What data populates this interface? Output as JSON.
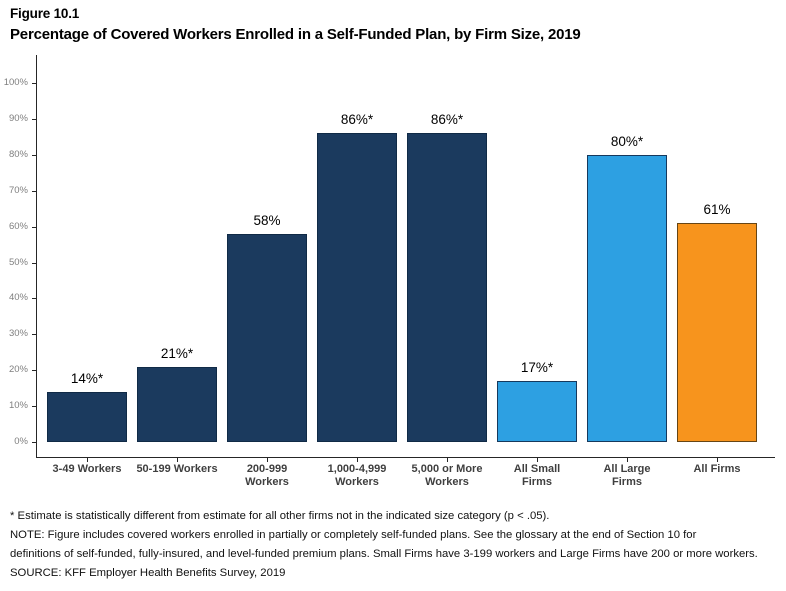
{
  "figure": {
    "label": "Figure 10.1",
    "title": "Percentage of Covered Workers Enrolled in a Self-Funded Plan, by Firm Size, 2019"
  },
  "chart_data": {
    "type": "bar",
    "title": "Percentage of Covered Workers Enrolled in a Self-Funded Plan, by Firm Size, 2019",
    "xlabel": "",
    "ylabel": "",
    "ylim": [
      0,
      100
    ],
    "grid": false,
    "legend": "none",
    "categories": [
      "3-49 Workers",
      "50-199 Workers",
      "200-999 Workers",
      "1,000-4,999 Workers",
      "5,000 or More Workers",
      "All Small Firms",
      "All Large Firms",
      "All Firms"
    ],
    "category_label_lines": [
      [
        "3-49 Workers"
      ],
      [
        "50-199 Workers"
      ],
      [
        "200-999",
        "Workers"
      ],
      [
        "1,000-4,999",
        "Workers"
      ],
      [
        "5,000 or More",
        "Workers"
      ],
      [
        "All Small",
        "Firms"
      ],
      [
        "All Large",
        "Firms"
      ],
      [
        "All Firms"
      ]
    ],
    "values": [
      14,
      21,
      58,
      86,
      86,
      17,
      80,
      61
    ],
    "value_labels": [
      "14%*",
      "21%*",
      "58%",
      "86%*",
      "86%*",
      "17%*",
      "80%*",
      "61%"
    ],
    "bar_colors": [
      "#1b3a5e",
      "#1b3a5e",
      "#1b3a5e",
      "#1b3a5e",
      "#1b3a5e",
      "#2da0e2",
      "#2da0e2",
      "#f7941d"
    ],
    "bar_border_colors": [
      "#102a46",
      "#102a46",
      "#102a46",
      "#102a46",
      "#102a46",
      "#16395d",
      "#16395d",
      "#664515"
    ],
    "yticks": [
      "0%",
      "10%",
      "20%",
      "30%",
      "40%",
      "50%",
      "60%",
      "70%",
      "80%",
      "90%",
      "100%"
    ],
    "ytick_values": [
      0,
      10,
      20,
      30,
      40,
      50,
      60,
      70,
      80,
      90,
      100
    ]
  },
  "footnotes": {
    "lines": [
      "* Estimate is statistically different from estimate for all other firms not in the indicated size category (p < .05).",
      "NOTE: Figure includes covered workers enrolled in partially or completely self-funded plans. See the glossary at the end of Section 10 for",
      "definitions of self-funded, fully-insured, and level-funded premium plans. Small Firms have 3-199 workers and Large Firms have 200 or more workers.",
      "SOURCE: KFF Employer Health Benefits Survey, 2019"
    ]
  },
  "colors": {
    "navy": "#1b3a5e",
    "light_blue": "#2da0e2",
    "orange": "#f7941d",
    "axis": "#262626",
    "ytick_text": "#7f7f7f",
    "xtick_text": "#3f3f3f",
    "background": "#ffffff"
  }
}
